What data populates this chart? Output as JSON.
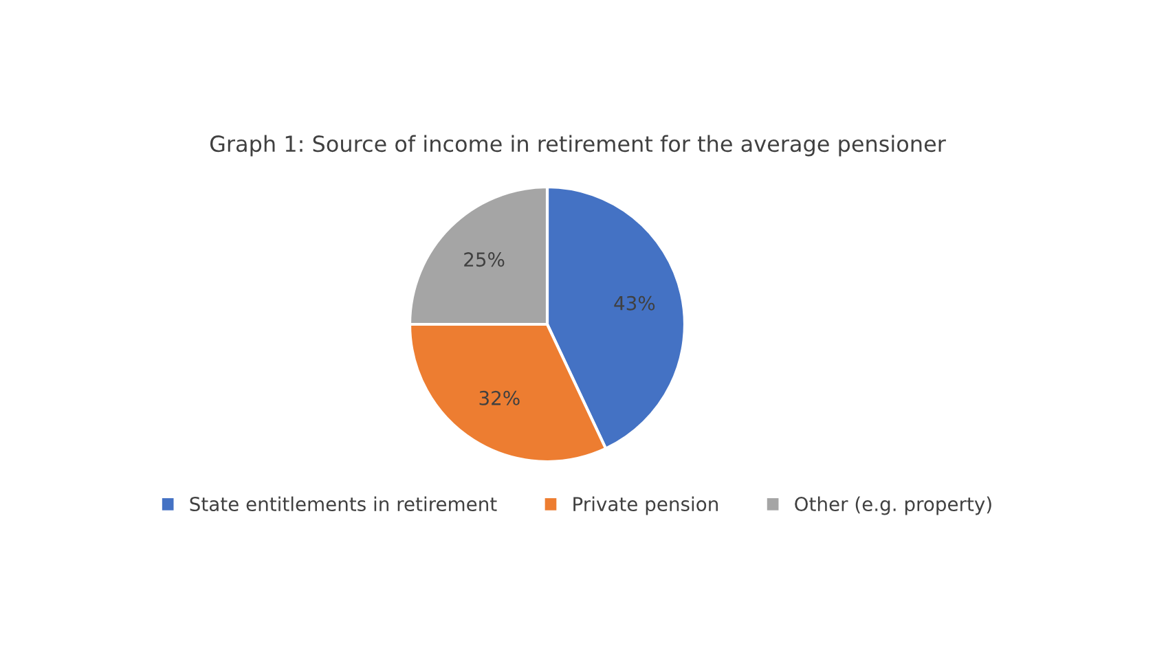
{
  "chart_data": {
    "type": "pie",
    "title": "Graph 1: Source of income in retirement for the average pensioner",
    "categories": [
      "State entitlements in retirement",
      "Private pension",
      "Other (e.g. property)"
    ],
    "values": [
      43,
      32,
      25
    ],
    "colors": [
      "#4472c4",
      "#ed7d31",
      "#a5a5a5"
    ],
    "value_labels": [
      "43%",
      "32%",
      "25%"
    ],
    "legend": "bottom"
  }
}
